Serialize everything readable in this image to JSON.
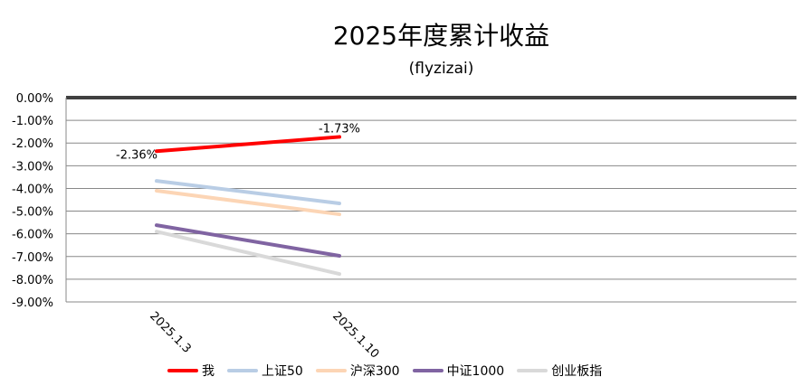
{
  "chart_data": {
    "type": "line",
    "title": "2025年度累计收益",
    "subtitle": "(flyzizai)",
    "categories": [
      "2025.1.3",
      "2025.1.10"
    ],
    "ylim": [
      -9,
      0
    ],
    "yticks": [
      "0.00%",
      "-1.00%",
      "-2.00%",
      "-3.00%",
      "-4.00%",
      "-5.00%",
      "-6.00%",
      "-7.00%",
      "-8.00%",
      "-9.00%"
    ],
    "grid": true,
    "legend_position": "bottom",
    "series": [
      {
        "name": "我",
        "values": [
          -2.36,
          -1.73
        ],
        "color": "#ff0000",
        "labels": [
          "-2.36%",
          "-1.73%"
        ]
      },
      {
        "name": "上证50",
        "values": [
          -3.67,
          -4.66
        ],
        "color": "#b9cde5"
      },
      {
        "name": "沪深300",
        "values": [
          -4.1,
          -5.14
        ],
        "color": "#fcd5b5"
      },
      {
        "name": "中证1000",
        "values": [
          -5.62,
          -6.97
        ],
        "color": "#8064a2"
      },
      {
        "name": "创业板指",
        "values": [
          -5.9,
          -7.77
        ],
        "color": "#d9d9d9"
      }
    ]
  }
}
